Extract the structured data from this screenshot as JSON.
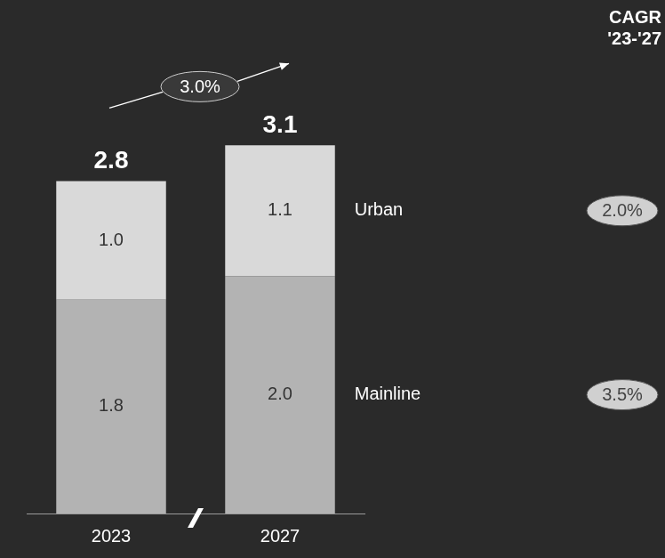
{
  "chart_data": {
    "type": "bar",
    "title": "CAGR '23-'27",
    "categories": [
      "2023",
      "2027"
    ],
    "series": [
      {
        "name": "Mainline",
        "color": "#b3b3b3",
        "values": [
          1.8,
          2.0
        ],
        "value_labels": [
          "1.8",
          "2.0"
        ],
        "cagr": {
          "value": 3.5,
          "label": "3.5%"
        }
      },
      {
        "name": "Urban",
        "color": "#d9d9d9",
        "values": [
          1.0,
          1.1
        ],
        "value_labels": [
          "1.0",
          "1.1"
        ],
        "cagr": {
          "value": 2.0,
          "label": "2.0%"
        }
      }
    ],
    "totals": [
      2.8,
      3.1
    ],
    "total_cagr": {
      "value": 3.0,
      "label": "3.0%"
    },
    "stacked": true,
    "data_labels": true,
    "tick_labels": "x",
    "grid": false,
    "ylim": [
      0,
      3.5
    ]
  }
}
